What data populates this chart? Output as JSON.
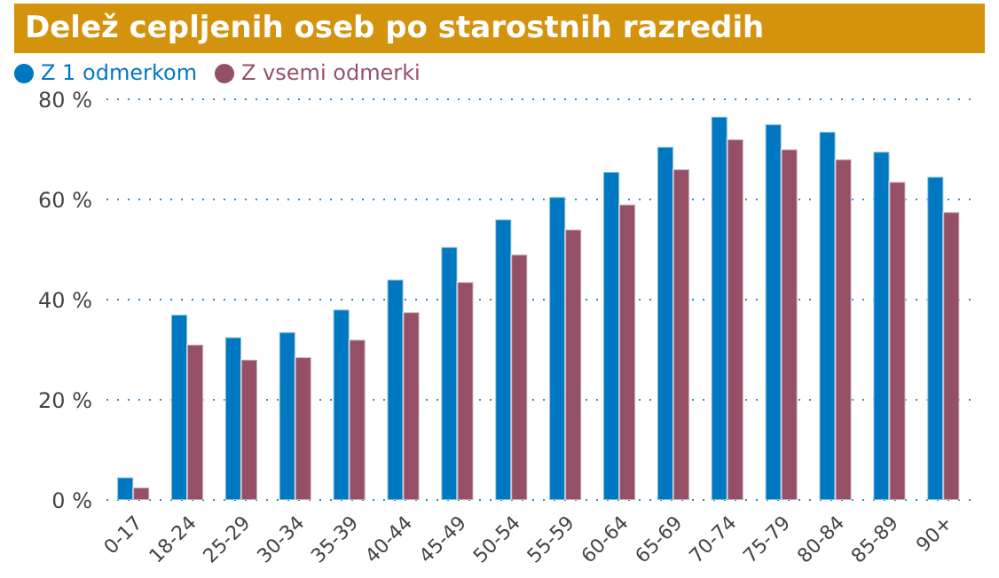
{
  "chart_data": {
    "type": "bar",
    "title": "Delež cepljenih oseb po starostnih razredih",
    "categories": [
      "0-17",
      "18-24",
      "25-29",
      "30-34",
      "35-39",
      "40-44",
      "45-49",
      "50-54",
      "55-59",
      "60-64",
      "65-69",
      "70-74",
      "75-79",
      "80-84",
      "85-89",
      "90+"
    ],
    "series": [
      {
        "name": "Z 1 odmerkom",
        "color": "#0077c1",
        "values": [
          4.5,
          37,
          32.5,
          33.5,
          38,
          44,
          50.5,
          56,
          60.5,
          65.5,
          70.5,
          76.5,
          75,
          73.5,
          69.5,
          64.5
        ]
      },
      {
        "name": "Z vsemi odmerki",
        "color": "#955068",
        "values": [
          2.5,
          31,
          28,
          28.5,
          32,
          37.5,
          43.5,
          49,
          54,
          59,
          66,
          72,
          70,
          68,
          63.5,
          57.5
        ]
      }
    ],
    "ylim": [
      0,
      80
    ],
    "yticks": [
      {
        "value": 0,
        "label": "0 %"
      },
      {
        "value": 20,
        "label": "20 %"
      },
      {
        "value": 40,
        "label": "40 %"
      },
      {
        "value": 60,
        "label": "60 %"
      },
      {
        "value": 80,
        "label": "80 %"
      }
    ],
    "grid": "y",
    "legend": "top left"
  }
}
